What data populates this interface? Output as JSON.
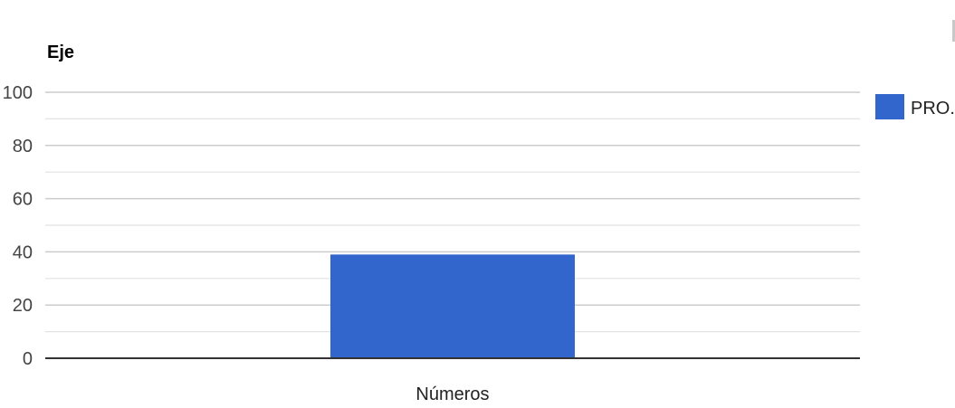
{
  "chart_data": {
    "type": "bar",
    "ylabel": "Eje",
    "categories": [
      "Números"
    ],
    "series": [
      {
        "name": "PRO...",
        "values": [
          39
        ]
      }
    ],
    "ylim": [
      0,
      100
    ],
    "yticks": [
      0,
      20,
      40,
      60,
      80,
      100
    ],
    "grid": true,
    "legend": "right",
    "colors": {
      "bar": "#3366cc",
      "grid": "#cccccc",
      "axis": "#333333"
    }
  }
}
